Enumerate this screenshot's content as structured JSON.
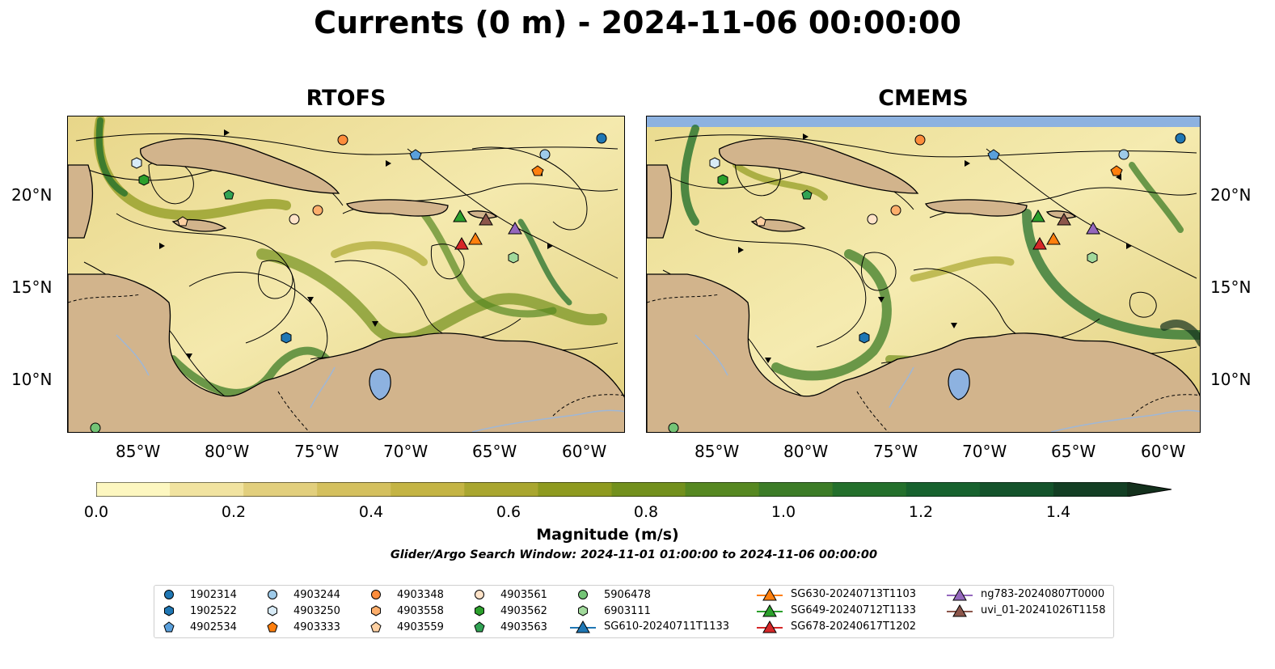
{
  "title": "Currents (0 m) - 2024-11-06 00:00:00",
  "panels": [
    {
      "title": "RTOFS"
    },
    {
      "title": "CMEMS"
    }
  ],
  "lon_ticks": [
    "85°W",
    "80°W",
    "75°W",
    "70°W",
    "65°W",
    "60°W"
  ],
  "lat_ticks": [
    "20°N",
    "15°N",
    "10°N"
  ],
  "colorbar": {
    "label": "Magnitude (m/s)",
    "ticks": [
      "0.0",
      "0.2",
      "0.4",
      "0.6",
      "0.8",
      "1.0",
      "1.2",
      "1.4"
    ],
    "range": [
      0,
      1.5
    ],
    "extend": "max",
    "colors": [
      "#fdf7c0",
      "#f1e3a0",
      "#e2cf7d",
      "#d4c05e",
      "#c4b444",
      "#a9a62f",
      "#8e9a1f",
      "#72901d",
      "#568821",
      "#3c7c27",
      "#24702c",
      "#17622e",
      "#14532b",
      "#133f24",
      "#13301c"
    ]
  },
  "search_window": "Glider/Argo Search Window: 2024-11-01 01:00:00 to 2024-11-06 00:00:00",
  "colors": {
    "land": "#d2b48c",
    "water_body": "#8db2e0",
    "river": "#9fb7d6",
    "blue": "#1f77b4",
    "light_blue": "#7fb8e6",
    "orange": "#ff7f0e",
    "light_orange": "#ffb26b",
    "peach": "#ffd9b5",
    "green": "#2ca02c",
    "light_green": "#7fd97f",
    "red": "#d62728",
    "purple": "#9467bd",
    "brown": "#8c564b"
  },
  "legend": [
    {
      "label": "1902314",
      "marker": "circle",
      "color": "#1f77b4"
    },
    {
      "label": "1902522",
      "marker": "hexagon",
      "color": "#1f77b4"
    },
    {
      "label": "4902534",
      "marker": "pentagon",
      "color": "#5aa0dc"
    },
    {
      "label": "4903244",
      "marker": "circle",
      "color": "#9ecae9"
    },
    {
      "label": "4903250",
      "marker": "hexagon",
      "color": "#d8ebf7"
    },
    {
      "label": "4903333",
      "marker": "pentagon",
      "color": "#ff7f0e"
    },
    {
      "label": "4903348",
      "marker": "circle",
      "color": "#fd8d3c"
    },
    {
      "label": "4903558",
      "marker": "hexagon",
      "color": "#fdae6b"
    },
    {
      "label": "4903559",
      "marker": "pentagon",
      "color": "#fdd0a2"
    },
    {
      "label": "4903561",
      "marker": "circle",
      "color": "#ffe3c8"
    },
    {
      "label": "4903562",
      "marker": "hexagon",
      "color": "#2ca02c"
    },
    {
      "label": "4903563",
      "marker": "pentagon",
      "color": "#31a354"
    },
    {
      "label": "5906478",
      "marker": "circle",
      "color": "#74c476"
    },
    {
      "label": "6903111",
      "marker": "hexagon",
      "color": "#a1d99b"
    },
    {
      "label": "SG610-20240711T1133",
      "marker": "triangle-line",
      "color": "#1f77b4"
    },
    {
      "label": "SG630-20240713T1103",
      "marker": "triangle-line",
      "color": "#ff7f0e"
    },
    {
      "label": "SG649-20240712T1133",
      "marker": "triangle-line",
      "color": "#2ca02c"
    },
    {
      "label": "SG678-20240617T1202",
      "marker": "triangle-line",
      "color": "#d62728"
    },
    {
      "label": "ng783-20240807T0000",
      "marker": "triangle-line",
      "color": "#9467bd"
    },
    {
      "label": "uvi_01-20241026T1158",
      "marker": "triangle-line",
      "color": "#8c564b"
    }
  ]
}
